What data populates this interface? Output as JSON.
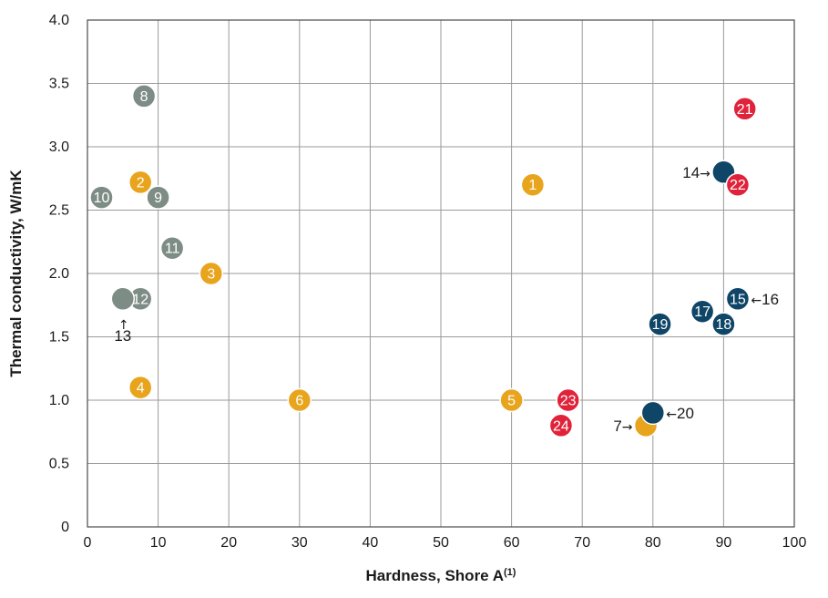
{
  "colors": {
    "orange": "#e8a41c",
    "gray": "#7e8c86",
    "navy": "#0f4566",
    "red": "#e0233a",
    "grid": "#9a9a9a",
    "frame": "#4a4a4a"
  },
  "chart_data": {
    "type": "scatter",
    "xlabel": "Hardness, Shore A",
    "xlabel_sup": "(1)",
    "ylabel": "Thermal conductivity, W/mK",
    "xlim": [
      0,
      100
    ],
    "ylim": [
      0,
      4.0
    ],
    "xticks": [
      "0",
      "10",
      "20",
      "30",
      "40",
      "50",
      "60",
      "70",
      "80",
      "90",
      "100"
    ],
    "yticks": [
      "0",
      "0.5",
      "1.0",
      "1.5",
      "2.0",
      "2.5",
      "3.0",
      "3.5",
      "4.0"
    ],
    "grid": true,
    "points": [
      {
        "label": "1",
        "x": 63,
        "y": 2.7,
        "color": "orange",
        "label_pos": "inside"
      },
      {
        "label": "2",
        "x": 7.5,
        "y": 2.72,
        "color": "orange",
        "label_pos": "inside"
      },
      {
        "label": "3",
        "x": 17.5,
        "y": 2.0,
        "color": "orange",
        "label_pos": "inside"
      },
      {
        "label": "4",
        "x": 7.5,
        "y": 1.1,
        "color": "orange",
        "label_pos": "inside"
      },
      {
        "label": "5",
        "x": 60,
        "y": 1.0,
        "color": "orange",
        "label_pos": "inside"
      },
      {
        "label": "6",
        "x": 30,
        "y": 1.0,
        "color": "orange",
        "label_pos": "inside"
      },
      {
        "label": "7",
        "x": 79,
        "y": 0.8,
        "color": "orange",
        "label_pos": "left"
      },
      {
        "label": "8",
        "x": 8,
        "y": 3.4,
        "color": "gray",
        "label_pos": "inside"
      },
      {
        "label": "9",
        "x": 10,
        "y": 2.6,
        "color": "gray",
        "label_pos": "inside"
      },
      {
        "label": "10",
        "x": 2,
        "y": 2.6,
        "color": "gray",
        "label_pos": "inside"
      },
      {
        "label": "11",
        "x": 12,
        "y": 2.2,
        "color": "gray",
        "label_pos": "inside"
      },
      {
        "label": "12",
        "x": 7.5,
        "y": 1.8,
        "color": "gray",
        "label_pos": "inside"
      },
      {
        "label": "13",
        "x": 5,
        "y": 1.8,
        "color": "gray",
        "label_pos": "below"
      },
      {
        "label": "14",
        "x": 90,
        "y": 2.8,
        "color": "navy",
        "label_pos": "left"
      },
      {
        "label": "15",
        "x": 92,
        "y": 1.8,
        "color": "navy",
        "label_pos": "inside"
      },
      {
        "label": "16",
        "x": 92,
        "y": 1.8,
        "color": "navy",
        "label_pos": "right-shared"
      },
      {
        "label": "17",
        "x": 87,
        "y": 1.7,
        "color": "navy",
        "label_pos": "inside"
      },
      {
        "label": "18",
        "x": 90,
        "y": 1.6,
        "color": "navy",
        "label_pos": "inside"
      },
      {
        "label": "19",
        "x": 81,
        "y": 1.6,
        "color": "navy",
        "label_pos": "inside"
      },
      {
        "label": "20",
        "x": 80,
        "y": 0.9,
        "color": "navy",
        "label_pos": "right"
      },
      {
        "label": "21",
        "x": 93,
        "y": 3.3,
        "color": "red",
        "label_pos": "inside"
      },
      {
        "label": "22",
        "x": 92,
        "y": 2.7,
        "color": "red",
        "label_pos": "inside"
      },
      {
        "label": "23",
        "x": 68,
        "y": 1.0,
        "color": "red",
        "label_pos": "inside"
      },
      {
        "label": "24",
        "x": 67,
        "y": 0.8,
        "color": "red",
        "label_pos": "inside"
      }
    ]
  }
}
